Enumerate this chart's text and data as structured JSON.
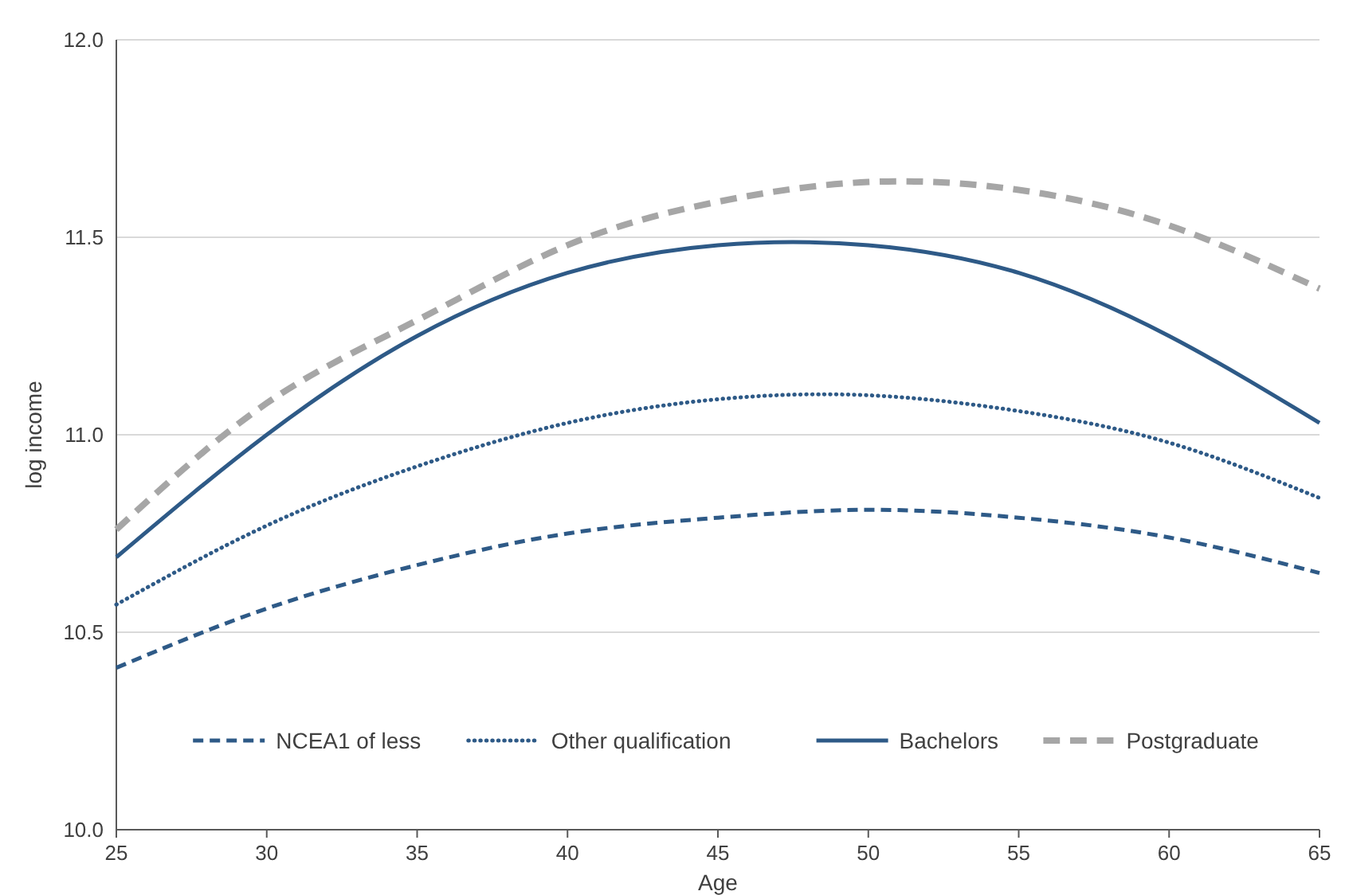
{
  "chart_data": {
    "type": "line",
    "xlabel": "Age",
    "ylabel": "log income",
    "x": [
      25,
      30,
      35,
      40,
      45,
      50,
      55,
      60,
      65
    ],
    "xlim": [
      25,
      65
    ],
    "xticks": [
      25,
      30,
      35,
      40,
      45,
      50,
      55,
      60,
      65
    ],
    "ylim": [
      10,
      12
    ],
    "yticks": [
      {
        "value": 10,
        "label": "10.0"
      },
      {
        "value": 10.5,
        "label": "10.5"
      },
      {
        "value": 11,
        "label": "11.0"
      },
      {
        "value": 11.5,
        "label": "11.5"
      },
      {
        "value": 12,
        "label": "12.0"
      }
    ],
    "grid": "y",
    "legend": "bottom",
    "marker": "none",
    "series": [
      {
        "name": "NCEA1 of less",
        "color": "#2e5a87",
        "line_style": "dashed",
        "values": [
          10.41,
          10.56,
          10.67,
          10.75,
          10.79,
          10.81,
          10.79,
          10.74,
          10.65
        ]
      },
      {
        "name": "Other qualification",
        "color": "#2e5a87",
        "line_style": "dotted",
        "values": [
          10.57,
          10.77,
          10.92,
          11.03,
          11.09,
          11.1,
          11.06,
          10.98,
          10.84
        ]
      },
      {
        "name": "Bachelors",
        "color": "#2e5a87",
        "line_style": "solid",
        "values": [
          10.69,
          11.0,
          11.25,
          11.41,
          11.48,
          11.48,
          11.41,
          11.25,
          11.03
        ]
      },
      {
        "name": "Postgraduate",
        "color": "#a6a6a6",
        "line_style": "dashed",
        "values": [
          10.76,
          11.08,
          11.29,
          11.48,
          11.59,
          11.64,
          11.62,
          11.53,
          11.37
        ]
      }
    ]
  }
}
